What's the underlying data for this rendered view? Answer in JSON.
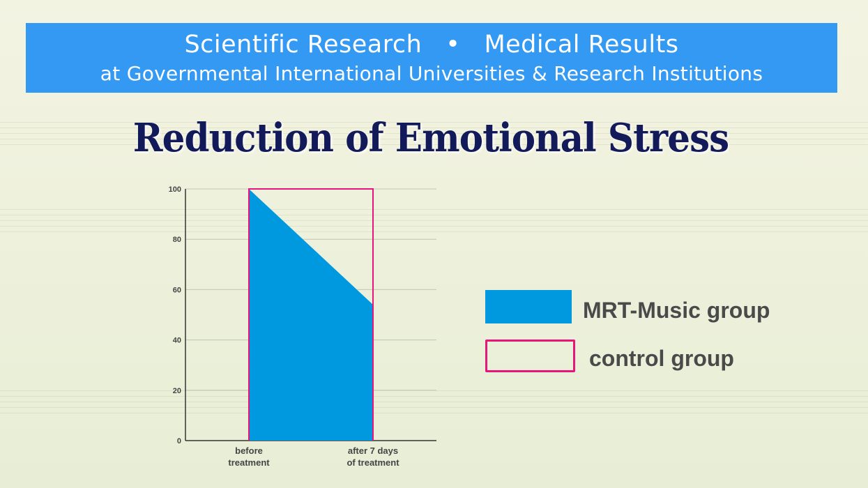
{
  "banner": {
    "line1_left": "Scientific Research",
    "line1_sep": "•",
    "line1_right": "Medical Results",
    "line2": "at Governmental International Universities & Research Institutions"
  },
  "title": "Reduction of Emotional Stress",
  "colors": {
    "banner": "#3399f3",
    "title": "#131a5a",
    "music_fill": "#0099e0",
    "control_stroke": "#e8157a"
  },
  "chart_data": {
    "type": "area",
    "title": "Reduction of Emotional Stress",
    "categories": [
      "before\ntreatment",
      "after 7 days\nof treatment"
    ],
    "x_tick_labels": [
      [
        "before",
        "treatment"
      ],
      [
        "after 7 days",
        "of treatment"
      ]
    ],
    "yticks": [
      0,
      20,
      40,
      60,
      80,
      100
    ],
    "ylim": [
      0,
      100
    ],
    "grid": true,
    "legend_position": "right",
    "series": [
      {
        "name": "MRT-Music group",
        "values": [
          100,
          54
        ],
        "style": "filled",
        "color": "#0099e0"
      },
      {
        "name": "control group",
        "values": [
          100,
          100
        ],
        "style": "outline",
        "color": "#e8157a"
      }
    ]
  },
  "legend": [
    {
      "label": "MRT-Music group"
    },
    {
      "label": "control group"
    }
  ]
}
